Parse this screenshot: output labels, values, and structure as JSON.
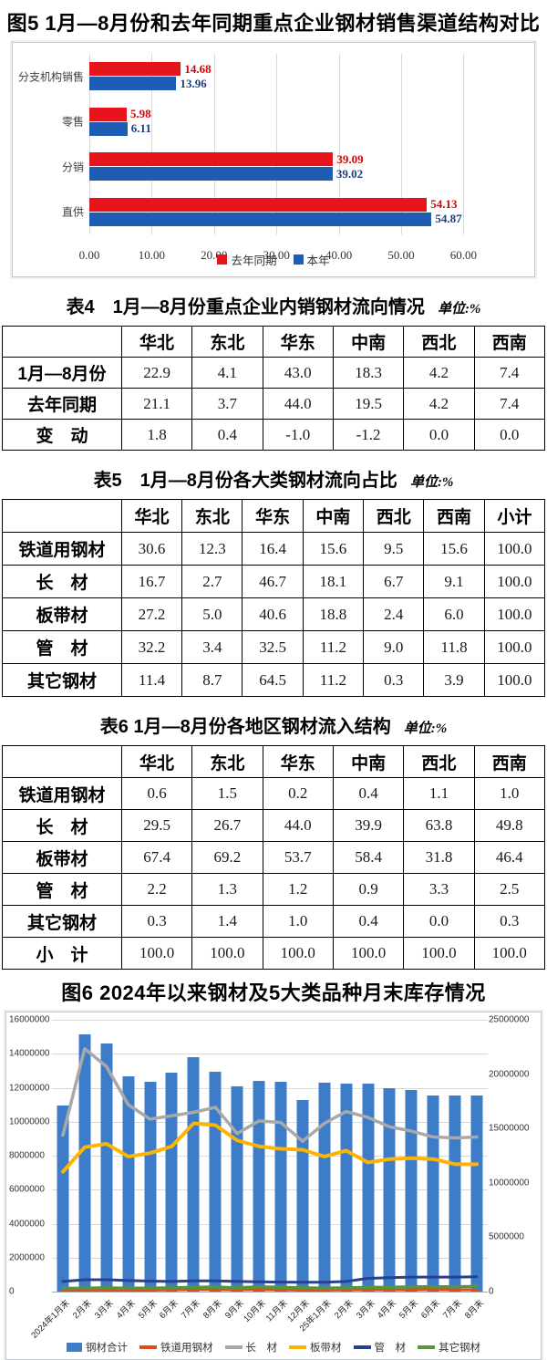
{
  "colors": {
    "fig5_last_year": "#e8141b",
    "fig5_this_year": "#1f5cb4",
    "fig5_label_red": "#e00000",
    "fig5_label_blue": "#1b3f7e",
    "fig6_bar": "#3d7cc9",
    "fig6_rail": "#e6491e",
    "fig6_long": "#a9a9a9",
    "fig6_flat": "#ffb400",
    "fig6_pipe": "#28408f",
    "fig6_other": "#55973a"
  },
  "tables": {
    "t4": {
      "title": "表4　1月—8月份重点企业内销钢材流向情况",
      "unit": "单位:%",
      "columns": [
        "",
        "华北",
        "东北",
        "华东",
        "中南",
        "西北",
        "西南"
      ],
      "rows": [
        [
          "1月—8月份",
          "22.9",
          "4.1",
          "43.0",
          "18.3",
          "4.2",
          "7.4"
        ],
        [
          "去年同期",
          "21.1",
          "3.7",
          "44.0",
          "19.5",
          "4.2",
          "7.4"
        ],
        [
          "变　动",
          "1.8",
          "0.4",
          "-1.0",
          "-1.2",
          "0.0",
          "0.0"
        ]
      ]
    },
    "t5": {
      "title": "表5　1月—8月份各大类钢材流向占比",
      "unit": "单位:%",
      "columns": [
        "",
        "华北",
        "东北",
        "华东",
        "中南",
        "西北",
        "西南",
        "小计"
      ],
      "rows": [
        [
          "铁道用钢材",
          "30.6",
          "12.3",
          "16.4",
          "15.6",
          "9.5",
          "15.6",
          "100.0"
        ],
        [
          "长　材",
          "16.7",
          "2.7",
          "46.7",
          "18.1",
          "6.7",
          "9.1",
          "100.0"
        ],
        [
          "板带材",
          "27.2",
          "5.0",
          "40.6",
          "18.8",
          "2.4",
          "6.0",
          "100.0"
        ],
        [
          "管　材",
          "32.2",
          "3.4",
          "32.5",
          "11.2",
          "9.0",
          "11.8",
          "100.0"
        ],
        [
          "其它钢材",
          "11.4",
          "8.7",
          "64.5",
          "11.2",
          "0.3",
          "3.9",
          "100.0"
        ]
      ]
    },
    "t6": {
      "title": "表6 1月—8月份各地区钢材流入结构",
      "unit": "单位:%",
      "columns": [
        "",
        "华北",
        "东北",
        "华东",
        "中南",
        "西北",
        "西南"
      ],
      "rows": [
        [
          "铁道用钢材",
          "0.6",
          "1.5",
          "0.2",
          "0.4",
          "1.1",
          "1.0"
        ],
        [
          "长　材",
          "29.5",
          "26.7",
          "44.0",
          "39.9",
          "63.8",
          "49.8"
        ],
        [
          "板带材",
          "67.4",
          "69.2",
          "53.7",
          "58.4",
          "31.8",
          "46.4"
        ],
        [
          "管　材",
          "2.2",
          "1.3",
          "1.2",
          "0.9",
          "3.3",
          "2.5"
        ],
        [
          "其它钢材",
          "0.3",
          "1.4",
          "1.0",
          "0.4",
          "0.0",
          "0.3"
        ],
        [
          "小　计",
          "100.0",
          "100.0",
          "100.0",
          "100.0",
          "100.0",
          "100.0"
        ]
      ]
    }
  },
  "chart_data": [
    {
      "type": "bar",
      "orientation": "horizontal",
      "title": "图5 1月—8月份和去年同期重点企业钢材销售渠道结构对比",
      "categories": [
        "分支机构销售",
        "零售",
        "分销",
        "直供"
      ],
      "series": [
        {
          "name": "去年同期",
          "color": "#e8141b",
          "label_color": "#e00000",
          "values": [
            14.68,
            5.98,
            39.09,
            54.13
          ]
        },
        {
          "name": "本年",
          "color": "#1f5cb4",
          "label_color": "#1b3f7e",
          "values": [
            13.96,
            6.11,
            39.02,
            54.87
          ]
        }
      ],
      "xlim": [
        0,
        60
      ],
      "x_ticks": [
        "0.00",
        "10.00",
        "20.00",
        "30.00",
        "40.00",
        "50.00",
        "60.00"
      ],
      "grid": "vertical",
      "legend_position": "bottom"
    },
    {
      "type": "combo-bar-line",
      "title": "图6 2024年以来钢材及5大类品种月末库存情况",
      "categories": [
        "2024年1月末",
        "2月末",
        "3月末",
        "4月末",
        "5月末",
        "6月末",
        "7月末",
        "8月末",
        "9月末",
        "10月末",
        "11月末",
        "12月末",
        "25年1月末",
        "2月末",
        "3月末",
        "4月末",
        "5月末",
        "6月末",
        "7月末",
        "8月末"
      ],
      "series": [
        {
          "name": "钢材合计",
          "type": "bar",
          "axis": "right",
          "color": "#3d7cc9",
          "values": [
            17100000,
            23700000,
            22800000,
            19800000,
            19300000,
            20100000,
            21600000,
            20200000,
            18900000,
            19400000,
            19300000,
            17600000,
            19200000,
            19100000,
            19100000,
            18700000,
            18500000,
            18000000,
            18000000,
            18000000
          ]
        },
        {
          "name": "铁道用钢材",
          "type": "line",
          "axis": "left",
          "color": "#e6491e",
          "values": [
            80000,
            80000,
            80000,
            80000,
            80000,
            100000,
            120000,
            120000,
            100000,
            120000,
            100000,
            80000,
            80000,
            100000,
            100000,
            100000,
            100000,
            120000,
            100000,
            100000
          ]
        },
        {
          "name": "长　材",
          "type": "line",
          "axis": "left",
          "color": "#a9a9a9",
          "values": [
            9200000,
            14300000,
            13250000,
            11000000,
            10150000,
            10350000,
            10550000,
            10850000,
            9300000,
            10050000,
            9950000,
            8850000,
            9900000,
            10600000,
            10250000,
            9700000,
            9450000,
            9100000,
            9050000,
            9100000
          ]
        },
        {
          "name": "板带材",
          "type": "line",
          "axis": "left",
          "color": "#ffb400",
          "values": [
            7050000,
            8500000,
            8700000,
            7950000,
            8150000,
            8550000,
            9900000,
            9800000,
            8900000,
            8550000,
            8400000,
            8350000,
            7950000,
            8300000,
            7600000,
            7800000,
            7850000,
            7800000,
            7500000,
            7500000
          ]
        },
        {
          "name": "管　材",
          "type": "line",
          "axis": "left",
          "color": "#28408f",
          "values": [
            600000,
            700000,
            700000,
            650000,
            620000,
            600000,
            630000,
            630000,
            600000,
            580000,
            560000,
            550000,
            550000,
            600000,
            780000,
            820000,
            850000,
            850000,
            850000,
            870000
          ]
        },
        {
          "name": "其它钢材",
          "type": "line",
          "axis": "left",
          "color": "#55973a",
          "values": [
            180000,
            200000,
            220000,
            200000,
            200000,
            220000,
            250000,
            270000,
            220000,
            280000,
            250000,
            220000,
            200000,
            220000,
            250000,
            250000,
            280000,
            280000,
            280000,
            300000
          ]
        }
      ],
      "left_axis": {
        "min": 0,
        "max": 16000000,
        "step": 2000000
      },
      "right_axis": {
        "min": 0,
        "max": 25000000,
        "step": 5000000
      },
      "grid": "horizontal",
      "legend_position": "bottom"
    }
  ]
}
